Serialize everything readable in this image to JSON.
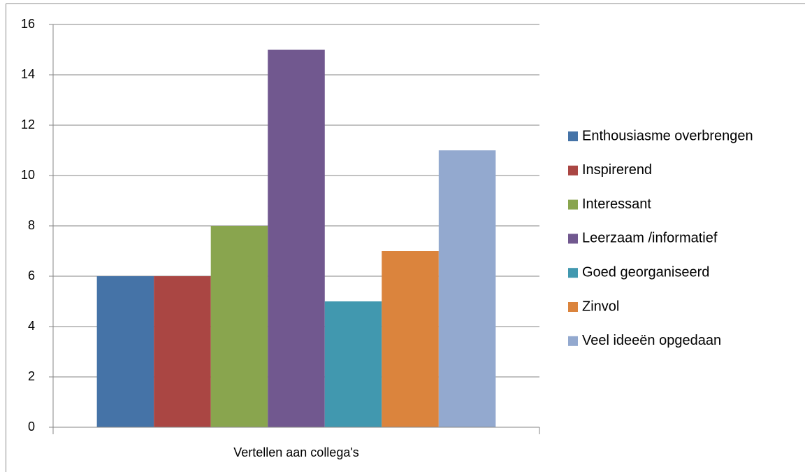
{
  "chart_data": {
    "type": "bar",
    "categories": [
      "Vertellen aan collega's"
    ],
    "series": [
      {
        "name": "Enthousiasme overbrengen",
        "color": "#4573a7",
        "values": [
          6
        ]
      },
      {
        "name": "Inspirerend",
        "color": "#aa4643",
        "values": [
          6
        ]
      },
      {
        "name": "Interessant",
        "color": "#89a54e",
        "values": [
          8
        ]
      },
      {
        "name": "Leerzaam /informatief",
        "color": "#71588f",
        "values": [
          15
        ]
      },
      {
        "name": "Goed georganiseerd",
        "color": "#4198af",
        "values": [
          5
        ]
      },
      {
        "name": "Zinvol",
        "color": "#db843d",
        "values": [
          7
        ]
      },
      {
        "name": "Veel ideeën opgedaan",
        "color": "#93a9cf",
        "values": [
          11
        ]
      }
    ],
    "ylim": [
      0,
      16
    ],
    "yticks": [
      0,
      2,
      4,
      6,
      8,
      10,
      12,
      14,
      16
    ],
    "grid": true,
    "legend": "right"
  }
}
